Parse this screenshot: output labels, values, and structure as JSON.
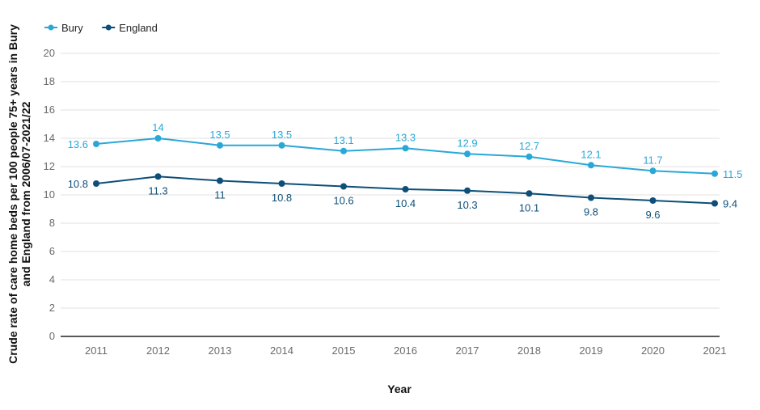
{
  "chart_data": {
    "type": "line",
    "title": "",
    "xlabel": "Year",
    "ylabel": "Crude rate of care home beds per 100 people 75+ years in Bury and England from 2006/07-2021/22",
    "categories": [
      "2011",
      "2012",
      "2013",
      "2014",
      "2015",
      "2016",
      "2017",
      "2018",
      "2019",
      "2020",
      "2021"
    ],
    "y_ticks": [
      "0",
      "2",
      "4",
      "6",
      "8",
      "10",
      "12",
      "14",
      "16",
      "18",
      "20"
    ],
    "ylim": [
      0,
      20
    ],
    "grid": true,
    "legend_position": "top-left",
    "series": [
      {
        "name": "Bury",
        "color": "#29a8d8",
        "values": [
          13.6,
          14,
          13.5,
          13.5,
          13.1,
          13.3,
          12.9,
          12.7,
          12.1,
          11.7,
          11.5
        ],
        "labels": [
          "13.6",
          "14",
          "13.5",
          "13.5",
          "13.1",
          "13.3",
          "12.9",
          "12.7",
          "12.1",
          "11.7",
          "11.5"
        ]
      },
      {
        "name": "England",
        "color": "#0d4f78",
        "values": [
          10.8,
          11.3,
          11,
          10.8,
          10.6,
          10.4,
          10.3,
          10.1,
          9.8,
          9.6,
          9.4
        ],
        "labels": [
          "10.8",
          "11.3",
          "11",
          "10.8",
          "10.6",
          "10.4",
          "10.3",
          "10.1",
          "9.8",
          "9.6",
          "9.4"
        ]
      }
    ]
  }
}
